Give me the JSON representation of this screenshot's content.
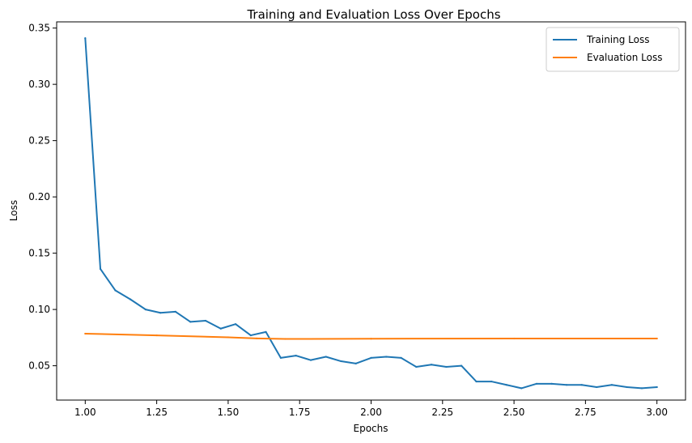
{
  "chart_data": {
    "type": "line",
    "title": "Training and Evaluation Loss Over Epochs",
    "xlabel": "Epochs",
    "ylabel": "Loss",
    "xlim": [
      0.9,
      3.1
    ],
    "ylim": [
      0.0195,
      0.3555
    ],
    "xticks": [
      1.0,
      1.25,
      1.5,
      1.75,
      2.0,
      2.25,
      2.5,
      2.75,
      3.0
    ],
    "xtick_labels": [
      "1.00",
      "1.25",
      "1.50",
      "1.75",
      "2.00",
      "2.25",
      "2.50",
      "2.75",
      "3.00"
    ],
    "yticks": [
      0.05,
      0.1,
      0.15,
      0.2,
      0.25,
      0.3,
      0.35
    ],
    "ytick_labels": [
      "0.05",
      "0.10",
      "0.15",
      "0.20",
      "0.25",
      "0.30",
      "0.35"
    ],
    "grid": false,
    "legend_position": "top-right",
    "series": [
      {
        "name": "Training Loss",
        "color": "#1f77b4",
        "x": [
          1.0,
          1.053,
          1.105,
          1.158,
          1.211,
          1.263,
          1.316,
          1.368,
          1.421,
          1.474,
          1.526,
          1.579,
          1.632,
          1.684,
          1.737,
          1.789,
          1.842,
          1.895,
          1.947,
          2.0,
          2.053,
          2.105,
          2.158,
          2.211,
          2.263,
          2.316,
          2.368,
          2.421,
          2.474,
          2.526,
          2.579,
          2.632,
          2.684,
          2.737,
          2.789,
          2.842,
          2.895,
          2.947,
          3.0
        ],
        "values": [
          0.341,
          0.136,
          0.117,
          0.109,
          0.1,
          0.097,
          0.098,
          0.089,
          0.09,
          0.083,
          0.087,
          0.077,
          0.08,
          0.057,
          0.059,
          0.055,
          0.058,
          0.054,
          0.052,
          0.057,
          0.058,
          0.057,
          0.049,
          0.051,
          0.049,
          0.05,
          0.036,
          0.036,
          0.033,
          0.03,
          0.034,
          0.034,
          0.033,
          0.033,
          0.031,
          0.033,
          0.031,
          0.03,
          0.031
        ]
      },
      {
        "name": "Evaluation Loss",
        "color": "#ff7f0e",
        "x": [
          1.0,
          1.25,
          1.5,
          1.6,
          1.7,
          2.0,
          2.5,
          3.0
        ],
        "values": [
          0.0785,
          0.077,
          0.0753,
          0.0743,
          0.0738,
          0.074,
          0.0742,
          0.0742
        ]
      }
    ]
  }
}
